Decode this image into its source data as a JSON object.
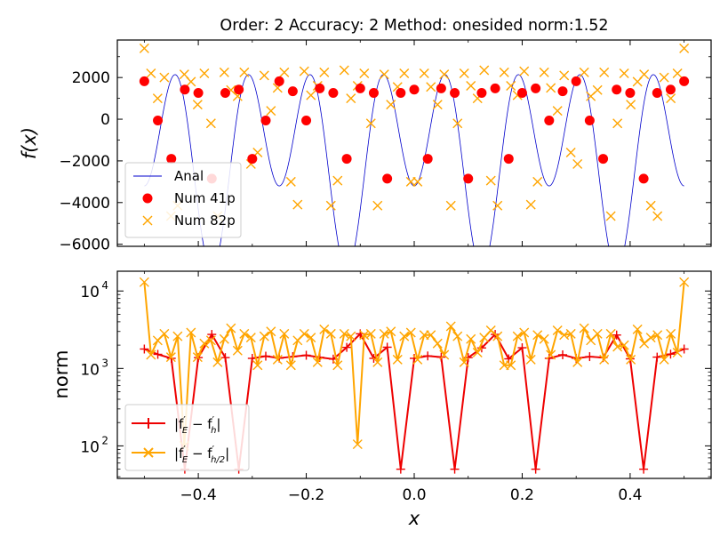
{
  "chart_data": [
    {
      "type": "line",
      "title": "Order: 2 Accuracy: 2 Method: onesided norm:1.52",
      "xlabel": "",
      "ylabel": "f(x)",
      "xlim": [
        -0.55,
        0.55
      ],
      "ylim": [
        -6100,
        3800
      ],
      "yticks": [
        -6000,
        -4000,
        -2000,
        0,
        2000
      ],
      "ytick_labels": [
        "−6000",
        "−4000",
        "−2000",
        "0",
        "2000"
      ],
      "legend_position": "lower-left",
      "grid": false,
      "series": [
        {
          "name": "Anal",
          "style": "line",
          "color": "#0000cc",
          "function": "f(x) = -1600 + 2000*cos(8*pi*x) - 3600*cos(16*pi*x)",
          "x_range": [
            -0.5,
            0.5
          ]
        },
        {
          "name": "Num 41p",
          "style": "circle",
          "color": "#ff0000",
          "x_range": [
            -0.5,
            0.5
          ],
          "n_points": 41,
          "y": [
            1820,
            -60,
            -1900,
            1420,
            1260,
            -2850,
            1260,
            1420,
            -1900,
            -60,
            1820,
            1340,
            -60,
            1480,
            1260,
            -1900,
            1480,
            1260,
            -2850,
            1260,
            1420,
            -1900,
            1480,
            1260,
            -2850,
            1260,
            1480,
            -1900,
            1260,
            1480,
            -60,
            1340,
            1820,
            -60,
            -1900,
            1420,
            1260,
            -2850,
            1260,
            1420,
            1820
          ]
        },
        {
          "name": "Num 82p",
          "style": "x",
          "color": "#ffa500",
          "x_range": [
            -0.5,
            0.5
          ],
          "n_points": 82,
          "y": [
            3400,
            2200,
            1000,
            2000,
            -4650,
            -4150,
            2150,
            1800,
            700,
            2200,
            -200,
            -4650,
            2250,
            1400,
            1100,
            2250,
            -2150,
            -1600,
            2100,
            400,
            1500,
            2250,
            -3000,
            -4100,
            2300,
            1150,
            1600,
            2250,
            -4150,
            -2950,
            2350,
            1000,
            1600,
            2200,
            -200,
            -4150,
            2150,
            700,
            1550,
            2200,
            -3000,
            -3000,
            2200,
            1550,
            700,
            2150,
            -4150,
            -200,
            2200,
            1600,
            1000,
            2350,
            -2950,
            -4150,
            2250,
            1600,
            1150,
            2300,
            -4100,
            -3000,
            2250,
            1500,
            400,
            2100,
            -1600,
            -2150,
            2250,
            1100,
            1400,
            2250,
            -4650,
            -200,
            2200,
            700,
            1800,
            2150,
            -4150,
            -4650,
            2000,
            1000,
            2200,
            3400
          ]
        }
      ]
    },
    {
      "type": "line",
      "title": "",
      "xlabel": "x",
      "ylabel": "norm",
      "xlim": [
        -0.55,
        0.55
      ],
      "ylim": [
        38,
        18000
      ],
      "yscale": "log",
      "xticks": [
        -0.4,
        -0.2,
        0.0,
        0.2,
        0.4
      ],
      "xtick_labels": [
        "−0.4",
        "−0.2",
        "0.0",
        "0.2",
        "0.4"
      ],
      "ytick_labels": [
        "10",
        "10",
        "10"
      ],
      "ytick_exponents": [
        "2",
        "3",
        "4"
      ],
      "yticks": [
        100,
        1000,
        10000
      ],
      "legend_position": "lower-left",
      "grid": false,
      "series": [
        {
          "name": "|f′E − f′h|",
          "legend_main": "|f",
          "legend_prime": "′",
          "legend_sub_e": "E",
          "legend_mid": " − f",
          "legend_sub_h": "h",
          "legend_end": "|",
          "style": "line-plus",
          "color": "#ee0000",
          "x_range": [
            -0.5,
            0.5
          ],
          "n_points": 41,
          "y": [
            1780,
            1520,
            1350,
            50,
            1380,
            2750,
            1380,
            50,
            1350,
            1440,
            1360,
            1420,
            1480,
            1390,
            1320,
            1870,
            2800,
            1350,
            1880,
            50,
            1350,
            1450,
            1400,
            50,
            1380,
            1840,
            2750,
            1330,
            1850,
            50,
            1350,
            1500,
            1350,
            1420,
            1380,
            2700,
            1330,
            50,
            1400,
            1530,
            1780
          ]
        },
        {
          "name": "|f′E − f′h/2|",
          "legend_main": "|f",
          "legend_prime": "′",
          "legend_sub_e": "E",
          "legend_mid": " − f",
          "legend_sub_h": "h/2",
          "legend_end": "|",
          "style": "line-x",
          "color": "#ffa500",
          "x_range": [
            -0.5,
            0.5
          ],
          "n_points": 82,
          "y": [
            13000,
            1500,
            2300,
            2800,
            1400,
            2600,
            100,
            2900,
            1400,
            2100,
            2300,
            1200,
            2400,
            3300,
            1700,
            2800,
            2500,
            1100,
            2600,
            3000,
            1300,
            2800,
            1100,
            2300,
            2800,
            2500,
            1200,
            3200,
            2800,
            1100,
            2800,
            2600,
            105,
            2700,
            2800,
            1200,
            2800,
            3000,
            1300,
            2600,
            2900,
            1300,
            2700,
            2700,
            2100,
            1500,
            3500,
            2600,
            1200,
            2400,
            1600,
            2500,
            3100,
            2600,
            1100,
            1100,
            2600,
            2900,
            1300,
            2700,
            2400,
            1500,
            3100,
            2700,
            2800,
            1200,
            3300,
            2300,
            2800,
            1300,
            2800,
            1900,
            2000,
            1300,
            3200,
            2100,
            2500,
            2700,
            1300,
            2800,
            1600,
            13000
          ]
        }
      ]
    }
  ]
}
